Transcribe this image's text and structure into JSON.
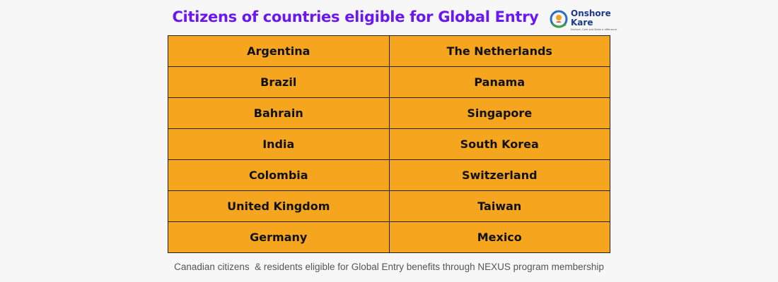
{
  "title": "Citizens of countries eligible for Global Entry",
  "logo": {
    "line1": "Onshore",
    "line2": "Kare",
    "tagline": "Nurture, Care and Make a difference"
  },
  "countries": [
    [
      "Argentina",
      "The Netherlands"
    ],
    [
      "Brazil",
      "Panama"
    ],
    [
      "Bahrain",
      "Singapore"
    ],
    [
      "India",
      "South Korea"
    ],
    [
      "Colombia",
      "Switzerland"
    ],
    [
      "United Kingdom",
      "Taiwan"
    ],
    [
      "Germany",
      "Mexico"
    ]
  ],
  "footer": "Canadian citizens  & residents eligible for Global Entry benefits through NEXUS program membership",
  "colors": {
    "title": "#6b17f0",
    "cell_fill": "#f6a61e",
    "border": "#222222",
    "background": "#f6f7f6"
  }
}
